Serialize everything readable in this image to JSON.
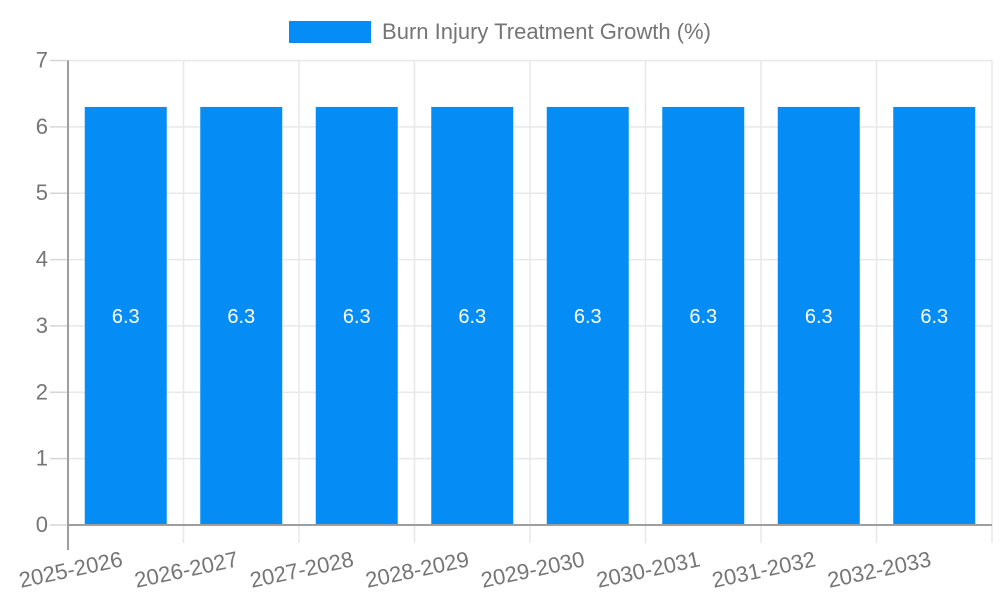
{
  "legend": {
    "position": "top"
  },
  "chart_data": {
    "type": "bar",
    "title": "Burn Injury Treatment Growth (%)",
    "categories": [
      "2025-2026",
      "2026-2027",
      "2027-2028",
      "2028-2029",
      "2029-2030",
      "2030-2031",
      "2031-2032",
      "2032-2033"
    ],
    "values": [
      6.3,
      6.3,
      6.3,
      6.3,
      6.3,
      6.3,
      6.3,
      6.3
    ],
    "bar_labels": [
      "6.3",
      "6.3",
      "6.3",
      "6.3",
      "6.3",
      "6.3",
      "6.3",
      "6.3"
    ],
    "xlabel": "",
    "ylabel": "",
    "ylim": [
      0,
      7
    ],
    "yticks": [
      0,
      1,
      2,
      3,
      4,
      5,
      6,
      7
    ],
    "grid": "both",
    "legend_position": "top",
    "x_label_rotation_deg": -12,
    "colors": {
      "bar": "#058DF5",
      "bar_label": "#FFFFFF",
      "axis_text": "#757575",
      "grid_line": "#E8E8E8",
      "tick_line": "#D6D6D6",
      "axis_line": "#9E9E9E",
      "background": "#FFFFFF"
    }
  }
}
